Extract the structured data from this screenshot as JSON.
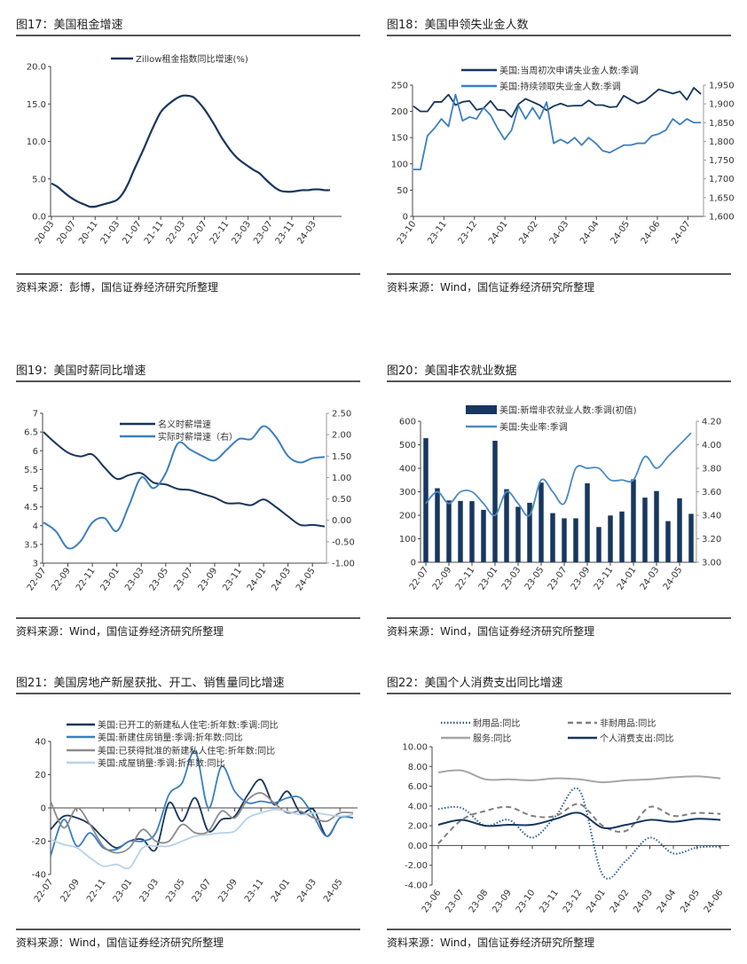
{
  "panels": [
    {
      "title": "图17：美国租金增速",
      "source": "资料来源：彭博，国信证券经济研究所整理"
    },
    {
      "title": "图18：美国申领失业金人数",
      "source": "资料来源：Wind，国信证券经济研究所整理"
    },
    {
      "title": "图19：美国时薪同比增速",
      "source": "资料来源：Wind，国信证券经济研究所整理"
    },
    {
      "title": "图20：美国非农就业数据",
      "source": "资料来源：Wind，国信证券经济研究所整理"
    },
    {
      "title": "图21：美国房地产新屋获批、开工、销售量同比增速",
      "source": "资料来源：Wind，国信证券经济研究所整理"
    },
    {
      "title": "图22：美国个人消费支出同比增速",
      "source": "资料来源：Wind，国信证券经济研究所整理"
    }
  ],
  "chart_data": [
    {
      "type": "line",
      "title": "图17：美国租金增速",
      "x_ticks": [
        "20-03",
        "20-07",
        "20-11",
        "21-03",
        "21-07",
        "21-11",
        "22-03",
        "22-07",
        "22-11",
        "23-03",
        "23-07",
        "23-11",
        "24-03"
      ],
      "x_tick_step": 4,
      "y_left": {
        "min": 0,
        "max": 20,
        "ticks": [
          "0.0",
          "5.0",
          "10.0",
          "15.0",
          "20.0"
        ]
      },
      "series": [
        {
          "name": "Zillow租金指数同比增速(%)",
          "axis": "left",
          "color": "#17365d",
          "style": "solid",
          "values": [
            4.4,
            4.0,
            3.4,
            2.8,
            2.3,
            1.9,
            1.6,
            1.3,
            1.3,
            1.5,
            1.7,
            1.9,
            2.2,
            3.0,
            4.3,
            6.0,
            7.6,
            9.2,
            10.9,
            12.5,
            13.9,
            14.7,
            15.3,
            15.8,
            16.1,
            16.1,
            15.9,
            15.2,
            14.3,
            13.2,
            12.0,
            10.7,
            9.6,
            8.6,
            7.8,
            7.2,
            6.7,
            6.2,
            5.8,
            5.1,
            4.4,
            3.8,
            3.4,
            3.3,
            3.3,
            3.4,
            3.5,
            3.5,
            3.6,
            3.6,
            3.5,
            3.5
          ]
        }
      ]
    },
    {
      "type": "line",
      "title": "图18：美国申领失业金人数",
      "x_ticks": [
        "23-10",
        "23-11",
        "23-12",
        "24-01",
        "24-02",
        "24-03",
        "24-04",
        "24-05",
        "24-06",
        "24-07"
      ],
      "y_left": {
        "min": 0,
        "max": 250,
        "ticks": [
          "0",
          "50",
          "100",
          "150",
          "200",
          "250"
        ]
      },
      "y_right": {
        "min": 1600,
        "max": 1950,
        "ticks": [
          "1,600",
          "1,650",
          "1,700",
          "1,750",
          "1,800",
          "1,850",
          "1,900",
          "1,950"
        ]
      },
      "series": [
        {
          "name": "美国:当周初次申请失业金人数:季调",
          "axis": "left",
          "color": "#17365d",
          "style": "solid",
          "values": [
            210,
            200,
            200,
            218,
            218,
            232,
            212,
            218,
            220,
            203,
            206,
            220,
            203,
            202,
            189,
            214,
            224,
            218,
            212,
            202,
            210,
            215,
            210,
            211,
            211,
            221,
            212,
            212,
            208,
            209,
            230,
            222,
            215,
            220,
            231,
            242,
            238,
            234,
            238,
            222,
            245,
            233
          ]
        },
        {
          "name": "美国:持续领取失业金人数:季调",
          "axis": "right",
          "color": "#3c7fbf",
          "style": "solid",
          "values": [
            1725,
            1725,
            1815,
            1835,
            1860,
            1840,
            1925,
            1855,
            1865,
            1860,
            1890,
            1870,
            1835,
            1805,
            1830,
            1895,
            1860,
            1890,
            1860,
            1905,
            1795,
            1805,
            1795,
            1810,
            1790,
            1810,
            1795,
            1775,
            1770,
            1780,
            1790,
            1790,
            1795,
            1795,
            1815,
            1820,
            1830,
            1860,
            1845,
            1860,
            1850,
            1850
          ]
        }
      ]
    },
    {
      "type": "line",
      "title": "图19：美国时薪同比增速",
      "x_ticks": [
        "22-07",
        "22-09",
        "22-11",
        "23-01",
        "23-03",
        "23-05",
        "23-07",
        "23-09",
        "23-11",
        "24-01",
        "24-03",
        "24-05"
      ],
      "x_tick_step": 2,
      "y_left": {
        "min": 3,
        "max": 7,
        "ticks": [
          "3",
          "3.5",
          "4",
          "4.5",
          "5",
          "5.5",
          "6",
          "6.5",
          "7"
        ]
      },
      "y_right": {
        "min": -1,
        "max": 2.5,
        "ticks": [
          "-1.00",
          "-0.50",
          "0.00",
          "0.50",
          "1.00",
          "1.50",
          "2.00",
          "2.50"
        ]
      },
      "series": [
        {
          "name": "名义时薪增速",
          "axis": "left",
          "color": "#17365d",
          "style": "solid",
          "values": [
            6.5,
            6.2,
            5.95,
            5.85,
            5.9,
            5.55,
            5.25,
            5.35,
            5.4,
            5.15,
            5.1,
            4.98,
            4.95,
            4.85,
            4.75,
            4.6,
            4.6,
            4.55,
            4.7,
            4.5,
            4.25,
            4.02,
            4.02,
            3.98
          ]
        },
        {
          "name": "实际时薪增速（右）",
          "axis": "right",
          "color": "#3c7fbf",
          "style": "solid",
          "values": [
            -0.05,
            -0.25,
            -0.65,
            -0.5,
            -0.05,
            0.05,
            -0.25,
            0.35,
            1.0,
            0.75,
            1.1,
            1.8,
            1.65,
            1.5,
            1.4,
            1.65,
            1.9,
            1.9,
            2.2,
            1.95,
            1.5,
            1.35,
            1.45,
            1.48
          ]
        }
      ]
    },
    {
      "type": "bar",
      "title": "图20：美国非农就业数据",
      "x_ticks": [
        "22-07",
        "22-09",
        "22-11",
        "23-01",
        "23-03",
        "23-05",
        "23-07",
        "23-09",
        "23-11",
        "24-01",
        "24-03",
        "24-05"
      ],
      "x_tick_step": 2,
      "y_left": {
        "min": 0,
        "max": 600,
        "ticks": [
          "0",
          "100",
          "200",
          "300",
          "400",
          "500",
          "600"
        ]
      },
      "y_right": {
        "min": 3.0,
        "max": 4.2,
        "ticks": [
          "3.00",
          "3.20",
          "3.40",
          "3.60",
          "3.80",
          "4.00",
          "4.20"
        ]
      },
      "series": [
        {
          "name": "美国:新增非农就业人数:季调(初值)",
          "axis": "left",
          "color": "#17375e",
          "style": "bar",
          "values": [
            528,
            315,
            263,
            261,
            260,
            223,
            517,
            311,
            236,
            253,
            339,
            209,
            187,
            187,
            336,
            150,
            199,
            216,
            353,
            275,
            303,
            175,
            272,
            206
          ]
        },
        {
          "name": "美国:失业率:季调",
          "axis": "right",
          "color": "#4a8ac4",
          "style": "solid",
          "values": [
            3.5,
            3.6,
            3.5,
            3.6,
            3.6,
            3.5,
            3.4,
            3.6,
            3.5,
            3.4,
            3.7,
            3.6,
            3.5,
            3.8,
            3.8,
            3.8,
            3.7,
            3.7,
            3.7,
            3.9,
            3.8,
            3.9,
            4.0,
            4.1
          ]
        }
      ]
    },
    {
      "type": "line",
      "title": "图21：美国房地产新屋获批、开工、销售量同比增速",
      "x_ticks": [
        "22-07",
        "22-09",
        "22-11",
        "23-01",
        "23-03",
        "23-05",
        "23-07",
        "23-09",
        "23-11",
        "24-01",
        "24-03",
        "24-05"
      ],
      "x_tick_step": 2,
      "y_left": {
        "min": -40,
        "max": 40,
        "ticks": [
          "-40",
          "-20",
          "0",
          "20",
          "40"
        ]
      },
      "series": [
        {
          "name": "美国:已开工的新建私人住宅:折年数:季调:同比",
          "axis": "left",
          "color": "#17365d",
          "style": "solid",
          "values": [
            -13,
            -5,
            -6,
            -10,
            -18,
            -24,
            -20,
            -19,
            -25,
            3,
            -8,
            6,
            -14,
            -7,
            -5,
            8,
            17,
            2,
            10,
            -3,
            -1,
            -17,
            -6,
            -6
          ]
        },
        {
          "name": "美国:新建住房销量:季调:折年数:同比",
          "axis": "left",
          "color": "#3c7fbf",
          "style": "solid",
          "values": [
            -29,
            -7,
            -23,
            -15,
            -24,
            -25,
            -20,
            -20,
            -15,
            8,
            15,
            34,
            0,
            25,
            10,
            3,
            4,
            3,
            6,
            6,
            -5,
            -17,
            -6,
            -6
          ]
        },
        {
          "name": "美国:已获得批准的新建私人住宅:折年数:同比",
          "axis": "left",
          "color": "#8c8c8c",
          "style": "solid",
          "values": [
            4,
            -12,
            0,
            -10,
            -23,
            -27,
            -24,
            -13,
            -20,
            -20,
            -10,
            -15,
            -14,
            -2,
            -6,
            5,
            9,
            3,
            -3,
            -2,
            -6,
            -8,
            -3,
            -3
          ]
        },
        {
          "name": "美国:成屋销量:季调:折年数:同比",
          "axis": "left",
          "color": "#b7d1ea",
          "style": "solid",
          "values": [
            -19,
            -22,
            -24,
            -30,
            -35,
            -34,
            -36,
            -24,
            -23,
            -23,
            -20,
            -17,
            -16,
            -15,
            -14,
            -6,
            -3,
            -1,
            -2,
            -4,
            -3,
            -4,
            -5,
            -4
          ]
        }
      ]
    },
    {
      "type": "line",
      "title": "图22：美国个人消费支出同比增速",
      "x_ticks": [
        "23-06",
        "23-07",
        "23-08",
        "23-09",
        "23-10",
        "23-11",
        "23-12",
        "24-01",
        "24-02",
        "24-03",
        "24-04",
        "24-05",
        "24-06"
      ],
      "x_tick_step": 1,
      "y_left": {
        "min": -4,
        "max": 10,
        "ticks": [
          "-4.00",
          "-2.00",
          "0.00",
          "2.00",
          "4.00",
          "6.00",
          "8.00",
          "10.00"
        ]
      },
      "series": [
        {
          "name": "耐用品:同比",
          "axis": "left",
          "color": "#2e5f9a",
          "style": "dotted",
          "values": [
            3.7,
            3.8,
            2.0,
            2.6,
            0.8,
            3.0,
            5.6,
            -3.0,
            -1.5,
            0.8,
            -0.8,
            -0.2,
            -0.1
          ]
        },
        {
          "name": "非耐用品:同比",
          "axis": "left",
          "color": "#7f7f7f",
          "style": "dashed",
          "values": [
            0.2,
            2.6,
            3.5,
            3.9,
            3.0,
            3.0,
            4.2,
            2.0,
            1.5,
            3.9,
            3.0,
            3.3,
            3.2
          ]
        },
        {
          "name": "服务:同比",
          "axis": "left",
          "color": "#a6a6a6",
          "style": "solid",
          "values": [
            7.4,
            7.6,
            6.7,
            6.7,
            6.6,
            6.8,
            6.7,
            6.4,
            6.6,
            6.7,
            6.9,
            7.0,
            6.8
          ]
        },
        {
          "name": "个人消费支出:同比",
          "axis": "left",
          "color": "#17365d",
          "style": "solid",
          "values": [
            2.1,
            2.6,
            2.0,
            2.1,
            2.1,
            2.7,
            3.3,
            1.8,
            2.1,
            2.6,
            2.4,
            2.7,
            2.6
          ]
        }
      ]
    }
  ]
}
